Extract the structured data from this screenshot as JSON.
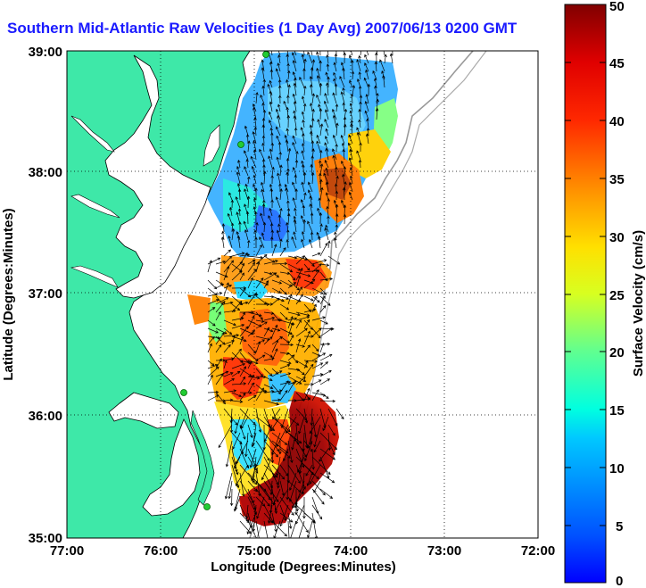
{
  "title": "Southern Mid-Atlantic Raw Velocities (1 Day Avg) 2007/06/13 0200 GMT",
  "x_axis": {
    "label": "Longitude (Degrees:Minutes)",
    "ticks": [
      "77:00",
      "76:00",
      "75:00",
      "74:00",
      "73:00",
      "72:00"
    ]
  },
  "y_axis": {
    "label": "Latitude (Degrees:Minutes)",
    "ticks": [
      "39:00",
      "38:00",
      "37:00",
      "36:00",
      "35:00"
    ]
  },
  "colorbar": {
    "label": "Surface Velocity (cm/s)",
    "ticks": [
      "50",
      "45",
      "40",
      "35",
      "30",
      "25",
      "20",
      "15",
      "10",
      "5",
      "0"
    ],
    "range": [
      0,
      50
    ],
    "colormap": "jet"
  },
  "colors": {
    "land": "#3ee8a8",
    "title": "#1a1aff",
    "site_marker": "#22cc33"
  },
  "map_extent": {
    "lon": [
      -77,
      -72
    ],
    "lat": [
      35,
      39
    ]
  },
  "grid": "dotted"
}
